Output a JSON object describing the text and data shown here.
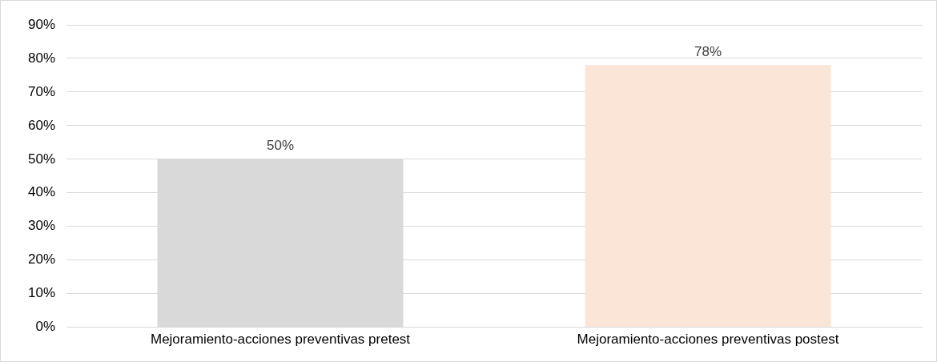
{
  "chart_data": {
    "type": "bar",
    "categories": [
      "Mejoramiento-acciones preventivas pretest",
      "Mejoramiento-acciones preventivas postest"
    ],
    "values": [
      50,
      78
    ],
    "colors": [
      "#d9d9d9",
      "#fbe5d6"
    ],
    "ylim": [
      0,
      90
    ],
    "yticks": [
      {
        "value": 0,
        "label": "0%"
      },
      {
        "value": 10,
        "label": "10%"
      },
      {
        "value": 20,
        "label": "20%"
      },
      {
        "value": 30,
        "label": "30%"
      },
      {
        "value": 40,
        "label": "40%"
      },
      {
        "value": 50,
        "label": "50%"
      },
      {
        "value": 60,
        "label": "60%"
      },
      {
        "value": 70,
        "label": "70%"
      },
      {
        "value": 80,
        "label": "80%"
      },
      {
        "value": 90,
        "label": "90%"
      }
    ],
    "grid": "y",
    "value_labels": [
      "50%",
      "78%"
    ]
  }
}
